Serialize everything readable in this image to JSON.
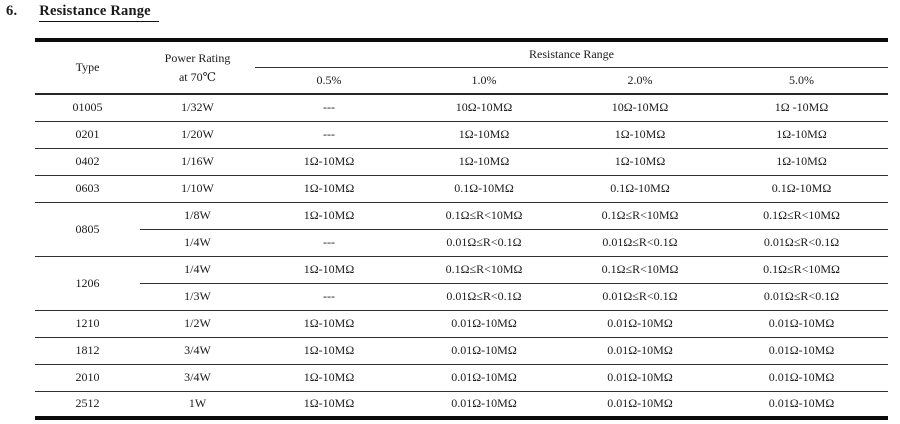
{
  "page": {
    "title_number": "6.",
    "title": "Resistance Range"
  },
  "colors": {
    "text": "#1a1a1a",
    "rule": "#303030",
    "background": "#ffffff"
  },
  "table": {
    "header": {
      "type": "Type",
      "power_rating_line1": "Power Rating",
      "power_rating_line2": "at 70℃",
      "resistance_range": "Resistance Range",
      "tolerances": [
        "0.5%",
        "1.0%",
        "2.0%",
        "5.0%"
      ]
    },
    "rows": [
      {
        "cells": [
          "01005",
          "1/32W",
          "---",
          "10Ω-10MΩ",
          "10Ω-10MΩ",
          "1Ω -10MΩ"
        ]
      },
      {
        "cells": [
          "0201",
          "1/20W",
          "---",
          "1Ω-10MΩ",
          "1Ω-10MΩ",
          "1Ω-10MΩ"
        ]
      },
      {
        "cells": [
          "0402",
          "1/16W",
          "1Ω-10MΩ",
          "1Ω-10MΩ",
          "1Ω-10MΩ",
          "1Ω-10MΩ"
        ]
      },
      {
        "cells": [
          "0603",
          "1/10W",
          "1Ω-10MΩ",
          "0.1Ω-10MΩ",
          "0.1Ω-10MΩ",
          "0.1Ω-10MΩ"
        ]
      },
      {
        "cells": [
          "0805",
          "1/8W",
          "1Ω-10MΩ",
          "0.1Ω≤R<10MΩ",
          "0.1Ω≤R<10MΩ",
          "0.1Ω≤R<10MΩ"
        ]
      },
      {
        "cells": [
          "",
          "1/4W",
          "---",
          "0.01Ω≤R<0.1Ω",
          "0.01Ω≤R<0.1Ω",
          "0.01Ω≤R<0.1Ω"
        ]
      },
      {
        "cells": [
          "1206",
          "1/4W",
          "1Ω-10MΩ",
          "0.1Ω≤R<10MΩ",
          "0.1Ω≤R<10MΩ",
          "0.1Ω≤R<10MΩ"
        ]
      },
      {
        "cells": [
          "",
          "1/3W",
          "---",
          "0.01Ω≤R<0.1Ω",
          "0.01Ω≤R<0.1Ω",
          "0.01Ω≤R<0.1Ω"
        ]
      },
      {
        "cells": [
          "1210",
          "1/2W",
          "1Ω-10MΩ",
          "0.01Ω-10MΩ",
          "0.01Ω-10MΩ",
          "0.01Ω-10MΩ"
        ]
      },
      {
        "cells": [
          "1812",
          "3/4W",
          "1Ω-10MΩ",
          "0.01Ω-10MΩ",
          "0.01Ω-10MΩ",
          "0.01Ω-10MΩ"
        ]
      },
      {
        "cells": [
          "2010",
          "3/4W",
          "1Ω-10MΩ",
          "0.01Ω-10MΩ",
          "0.01Ω-10MΩ",
          "0.01Ω-10MΩ"
        ]
      },
      {
        "cells": [
          "2512",
          "1W",
          "1Ω-10MΩ",
          "0.01Ω-10MΩ",
          "0.01Ω-10MΩ",
          "0.01Ω-10MΩ"
        ]
      }
    ]
  }
}
